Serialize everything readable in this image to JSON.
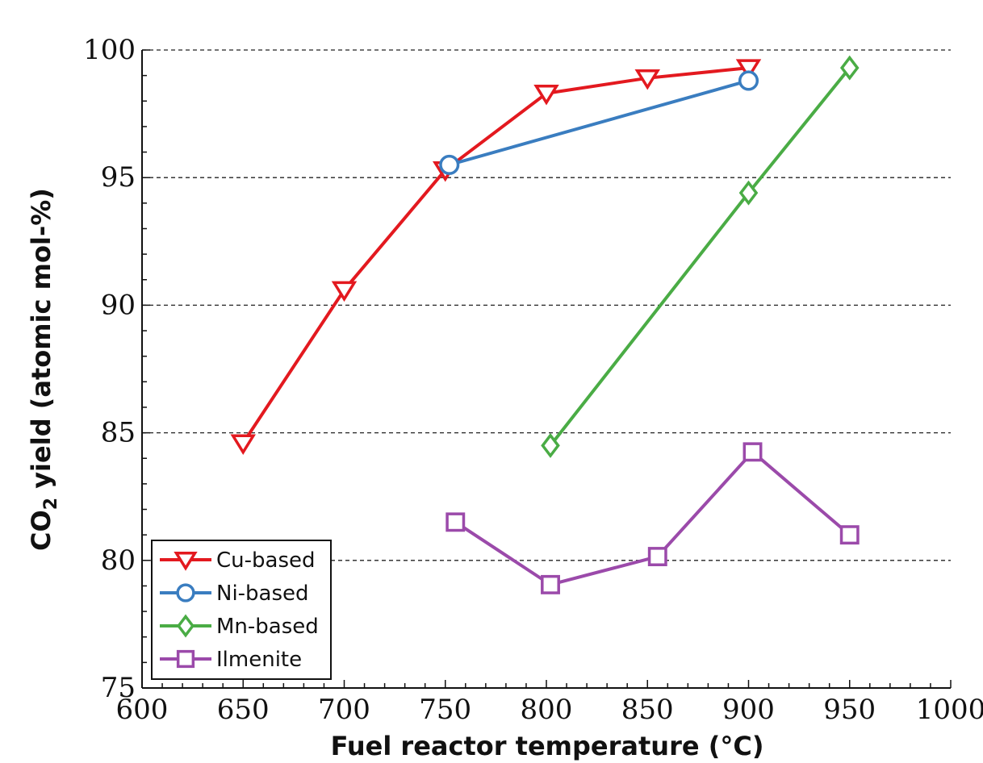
{
  "chart_data": {
    "type": "line",
    "xlabel": "Fuel reactor temperature (°C)",
    "ylabel_main": "CO",
    "ylabel_sub": "2",
    "ylabel_rest": " yield (atomic mol-%)",
    "xlim": [
      600,
      1000
    ],
    "ylim": [
      75,
      100
    ],
    "xticks": [
      600,
      650,
      700,
      750,
      800,
      850,
      900,
      950,
      1000
    ],
    "yticks": [
      75,
      80,
      85,
      90,
      95,
      100
    ],
    "grid": "horizontal dashed",
    "legend_position": "bottom-left",
    "series": [
      {
        "name": "Cu-based",
        "color": "#e3191f",
        "marker": "triangle-down",
        "x": [
          650,
          700,
          750,
          800,
          850,
          900
        ],
        "y": [
          84.6,
          90.6,
          95.3,
          98.3,
          98.9,
          99.3
        ]
      },
      {
        "name": "Ni-based",
        "color": "#3a7dc0",
        "marker": "circle",
        "x": [
          752,
          900
        ],
        "y": [
          95.5,
          98.8
        ]
      },
      {
        "name": "Mn-based",
        "color": "#4aac45",
        "marker": "diamond",
        "x": [
          802,
          900,
          950
        ],
        "y": [
          84.5,
          94.4,
          99.3
        ]
      },
      {
        "name": "Ilmenite",
        "color": "#9b4aaa",
        "marker": "square",
        "x": [
          755,
          802,
          855,
          902,
          950
        ],
        "y": [
          81.5,
          79.05,
          80.15,
          84.25,
          81.0
        ]
      }
    ]
  }
}
